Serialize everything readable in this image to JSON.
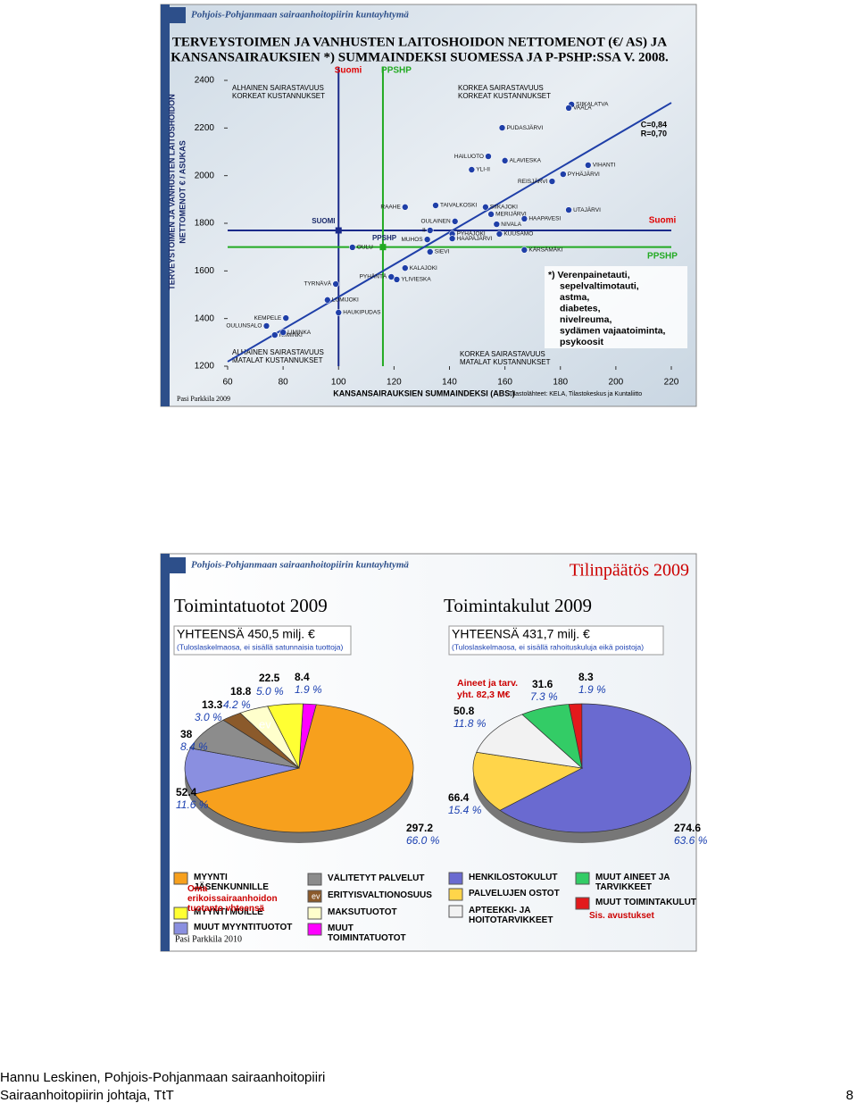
{
  "header": "Pohjois-Pohjanmaan sairaanhoitopiirin kuntayhtymä",
  "footer": [
    "Hannu Leskinen, Pohjois-Pohjanmaan sairaanhoitopiiri",
    "Sairaanhoitopiirin johtaja, TtT"
  ],
  "page_number": "8",
  "slide2_title": "Tilinpäätös 2009",
  "slide2_author": "Pasi Parkkila 2010",
  "chart_data": [
    {
      "type": "scatter",
      "title": [
        "TERVEYSTOIMEN JA VANHUSTEN LAITOSHOIDON NETTOMENOT (€/ AS) JA",
        "KANSANSAIRAUKSIEN *) SUMMAINDEKSI SUOMESSA JA P-PSHP:SSA V. 2008."
      ],
      "y_label": [
        "TERVEYSTOIMEN JA VANHUSTEN LAITOSHOIDON",
        "NETTOMENOT € / ASUKAS"
      ],
      "x_label": "KANSANSAIRAUKSIEN SUMMAINDEKSI (ABS.)",
      "source": "Tilastolähteet: KELA, Tilastokeskus ja Kuntaliitto",
      "author": "Pasi Parkkila 2009",
      "xlim": [
        60,
        220
      ],
      "xticks": [
        60,
        80,
        100,
        120,
        140,
        160,
        180,
        200,
        220
      ],
      "ylim": [
        1200,
        2400
      ],
      "yticks": [
        1200,
        1400,
        1600,
        1800,
        2000,
        2200,
        2400
      ],
      "color": "#1f3fa8",
      "point_labels": [
        "OULUNSALO",
        "KIIMINKI",
        "LIMINKA",
        "KEMPELE",
        "TYRNÄVÄ",
        "LUMIJOKI",
        "HAUKIPUDAS",
        "OULU",
        "RAAHE",
        "KALAJOKI",
        "PYHÄNTÄ",
        "YLIVIESKA",
        "SIEVI",
        "MUHOS",
        "II",
        "TAIVALKOSKI",
        "OULAINEN",
        "PYHÄJOKI",
        "HAAPAJÄRVI",
        "HAILUOTO",
        "YLI-II",
        "PUDASJÄRVI",
        "ALAVIESKA",
        "SIIKAJOKI",
        "MERIJÄRVI",
        "NIVALA",
        "KUUSAMO",
        "HAAPAVESI",
        "KÄRSÄMÄKI",
        "SIIKALATVA",
        "VAALA",
        "REISJÄRVI",
        "PYHÄJÄRVI",
        "VIHANTI",
        "UTAJÄRVI"
      ],
      "x": [
        74,
        77,
        80,
        81,
        99,
        96,
        100,
        105,
        124,
        124,
        119,
        121,
        133,
        132,
        133,
        135,
        142,
        141,
        141,
        154,
        148,
        159,
        160,
        153,
        155,
        157,
        158,
        167,
        167,
        184,
        183,
        177,
        181,
        190,
        183
      ],
      "values": [
        1369,
        1331,
        1342,
        1402,
        1545,
        1478,
        1425,
        1699,
        1868,
        1612,
        1575,
        1564,
        1680,
        1732,
        1770,
        1875,
        1808,
        1755,
        1736,
        2081,
        2025,
        2201,
        2063,
        1868,
        1838,
        1796,
        1755,
        1819,
        1688,
        2299,
        2284,
        1976,
        2006,
        2044,
        1856
      ],
      "trend": {
        "x": [
          60,
          220
        ],
        "values": [
          1219,
          2306
        ],
        "color": "#1f3fa8"
      },
      "correlation": [
        "C=0,84",
        "R=0,70"
      ],
      "references": [
        {
          "name": "Suomi",
          "point_label": "SUOMI",
          "x": 100,
          "y": 1770,
          "color": "#1a2a8a",
          "label_color": "#e00000"
        },
        {
          "name": "PPSHP",
          "point_label": "PPSHP",
          "x": 116,
          "y": 1700,
          "color": "#22aa22",
          "label_color": "#22aa22"
        }
      ],
      "quadrant_labels": [
        [
          "ALHAINEN SAIRASTAVUUS",
          "KORKEAT KUSTANNUKSET"
        ],
        [
          "KORKEA SAIRASTAVUUS",
          "KORKEAT KUSTANNUKSET"
        ],
        [
          "ALHAINEN SAIRASTAVUUS",
          "MATALAT KUSTANNUKSET"
        ],
        [
          "KORKEA SAIRASTAVUUS",
          "MATALAT KUSTANNUKSET"
        ]
      ],
      "footnote": [
        "*) Verenpainetauti,",
        "sepelvaltimotauti,",
        "astma,",
        "diabetes,",
        "nivelreuma,",
        "sydämen vajaatoiminta,",
        "psykoosit"
      ]
    },
    {
      "type": "pie",
      "title": "Toimintatuotot 2009",
      "total": "YHTEENSÄ  450,5 milj. €",
      "note": "(Tuloslaskelmaosa, ei sisällä satunnaisia tuottoja)",
      "categories": [
        "MUUT TOIMINTATUOTOT",
        "MYYNTI JÄSENKUNNILLE",
        "MUUT MYYNTITUOTOT",
        "VÄLITETYT PALVELUT",
        "ERITYISVALTIONOSUUS",
        "MAKSUTUOTOT",
        "MYYNTI MUILLE"
      ],
      "values": [
        8.4,
        297.2,
        52.4,
        38.0,
        13.3,
        18.8,
        22.5
      ],
      "share_labels": [
        "1.9 %",
        "66.0 %",
        "11.6 %",
        "8.4 %",
        "3.0 %",
        "4.2 %",
        "5.0 %"
      ],
      "colors": [
        "#ff00ff",
        "#f7a01d",
        "#8a8fe0",
        "#8c8c8c",
        "#8b5a2b",
        "#ffffcc",
        "#ffff33"
      ],
      "slice_tag": "ev",
      "legend_note": "Oma erikoissairaanhoidon tuotanto yhteensä"
    },
    {
      "type": "pie",
      "title": "Toimintakulut 2009",
      "total": "YHTEENSÄ  431,7 milj. €",
      "note": "(Tuloslaskelmaosa, ei sisällä rahoituskuluja eikä poistoja)",
      "categories": [
        "MUUT TOIMINTAKULUT",
        "HENKILÖSTÖKULUT",
        "PALVELUJEN OSTOT",
        "APTEEKKI- JA HOITOTARVIKKEET",
        "MUUT AINEET JA TARVIKKEET"
      ],
      "values": [
        8.3,
        274.6,
        66.4,
        50.8,
        31.6
      ],
      "share_labels": [
        "1.9 %",
        "63.6 %",
        "15.4 %",
        "11.8 %",
        "7.3 %"
      ],
      "colors": [
        "#e31a1c",
        "#6a6ad0",
        "#ffd54a",
        "#f2f2f2",
        "#33cc66"
      ],
      "annotation": [
        "Aineet ja tarv.",
        "yht. 82,3 M€"
      ],
      "legend_note": "Sis. avustukset"
    }
  ]
}
